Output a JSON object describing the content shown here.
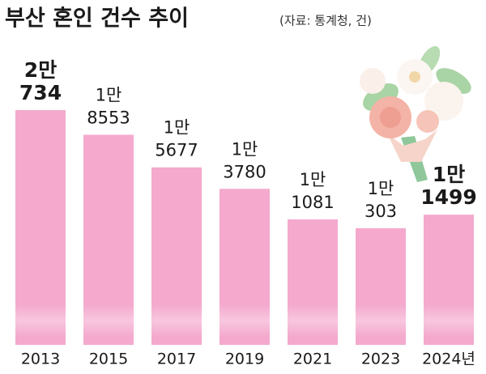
{
  "chart_data": {
    "type": "bar",
    "title": "부산 혼인 건수 추이",
    "subtitle": "(자료: 통계청, 건)",
    "categories": [
      "2013",
      "2015",
      "2017",
      "2019",
      "2021",
      "2023",
      "2024년"
    ],
    "values": [
      20734,
      18553,
      15677,
      13780,
      11081,
      10303,
      11499
    ],
    "value_labels": [
      [
        "2만",
        "734"
      ],
      [
        "1만",
        "8553"
      ],
      [
        "1만",
        "5677"
      ],
      [
        "1만",
        "3780"
      ],
      [
        "1만",
        "1081"
      ],
      [
        "1만",
        "303"
      ],
      [
        "1만",
        "1499"
      ]
    ],
    "color": "#f4a9cd"
  }
}
